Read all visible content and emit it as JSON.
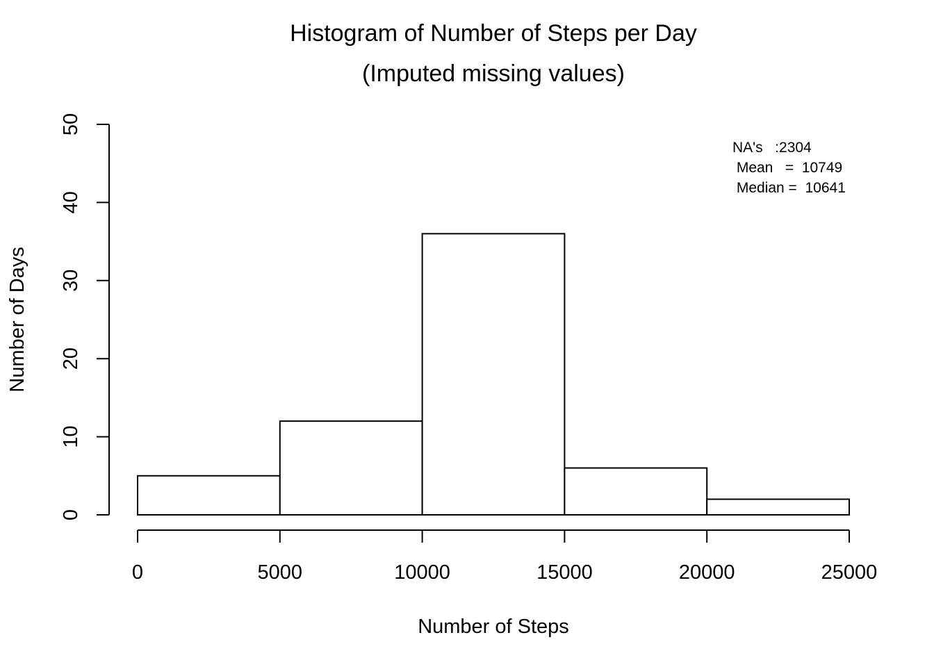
{
  "chart_data": {
    "type": "bar",
    "title": "Histogram of Number of Steps per Day",
    "subtitle": "(Imputed missing values)",
    "xlabel": "Number of Steps",
    "ylabel": "Number of Days",
    "bins": [
      {
        "from": 0,
        "to": 5000,
        "value": 5
      },
      {
        "from": 5000,
        "to": 10000,
        "value": 12
      },
      {
        "from": 10000,
        "to": 15000,
        "value": 36
      },
      {
        "from": 15000,
        "to": 20000,
        "value": 6
      },
      {
        "from": 20000,
        "to": 25000,
        "value": 2
      }
    ],
    "xlim": [
      0,
      25000
    ],
    "ylim": [
      0,
      50
    ],
    "xticks": [
      0,
      5000,
      10000,
      15000,
      20000,
      25000
    ],
    "yticks": [
      0,
      10,
      20,
      30,
      40,
      50
    ],
    "annotations": [
      "NA's   :2304",
      " Mean   =  10749",
      " Median =  10641"
    ],
    "grid": false,
    "legend": "none",
    "bar_fill": "#ffffff",
    "bar_stroke": "#000000"
  }
}
